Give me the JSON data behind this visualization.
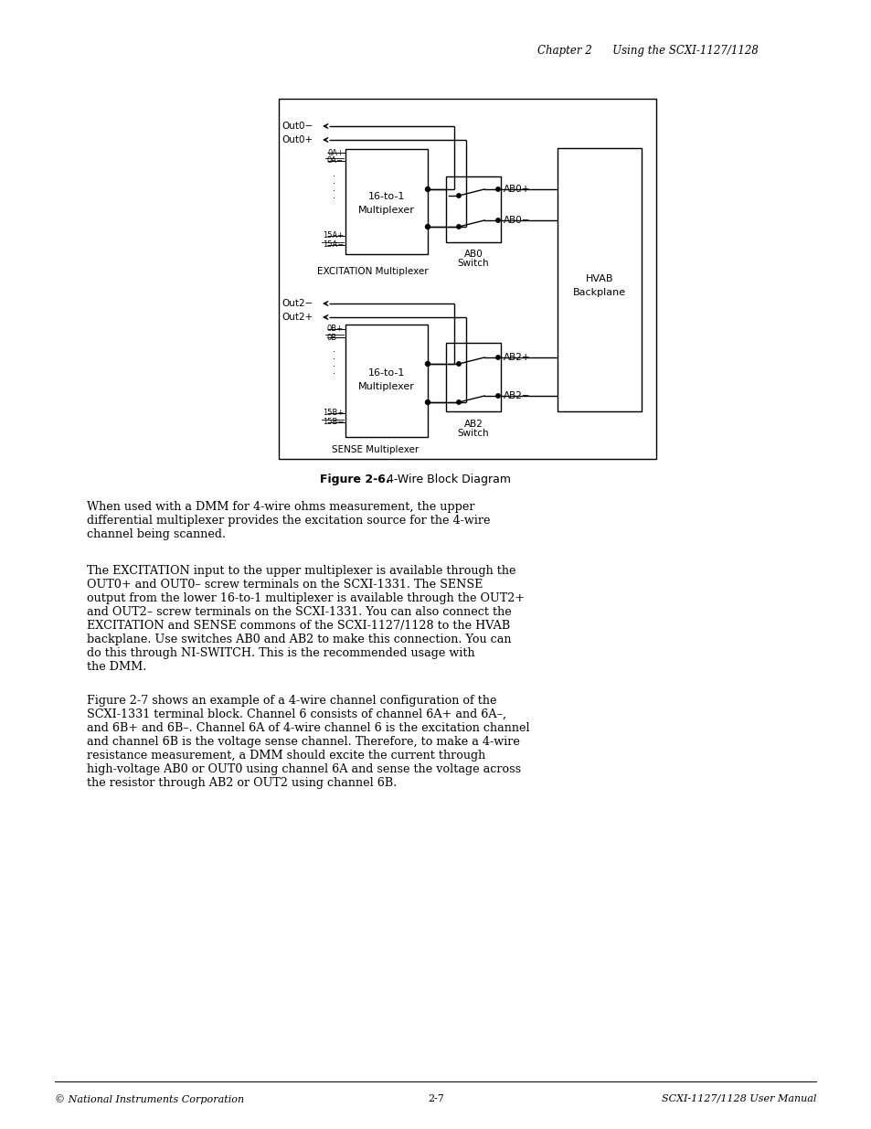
{
  "page_header": "Chapter 2      Using the SCXI-1127/1128",
  "figure_caption_bold": "Figure 2-6.",
  "figure_caption_rest": "  4-Wire Block Diagram",
  "body_paragraphs": [
    "When used with a DMM for 4-wire ohms measurement, the upper\ndifferential multiplexer provides the excitation source for the 4-wire\nchannel being scanned.",
    "The EXCITATION input to the upper multiplexer is available through the\nOUT0+ and OUT0– screw terminals on the SCXI-1331. The SENSE\noutput from the lower 16-to-1 multiplexer is available through the OUT2+\nand OUT2– screw terminals on the SCXI-1331. You can also connect the\nEXCITATION and SENSE commons of the SCXI-1127/1128 to the HVAB\nbackplane. Use switches AB0 and AB2 to make this connection. You can\ndo this through NI-SWITCH. This is the recommended usage with\nthe DMM.",
    "Figure 2-7 shows an example of a 4-wire channel configuration of the\nSCXI-1331 terminal block. Channel 6 consists of channel 6A+ and 6A–,\nand 6B+ and 6B–. Channel 6A of 4-wire channel 6 is the excitation channel\nand channel 6B is the voltage sense channel. Therefore, to make a 4-wire\nresistance measurement, a DMM should excite the current through\nhigh-voltage AB0 or OUT0 using channel 6A and sense the voltage across\nthe resistor through AB2 or OUT2 using channel 6B."
  ],
  "footer_left": "© National Instruments Corporation",
  "footer_center": "2-7",
  "footer_right": "SCXI-1127/1128 User Manual",
  "bg_color": "#ffffff"
}
